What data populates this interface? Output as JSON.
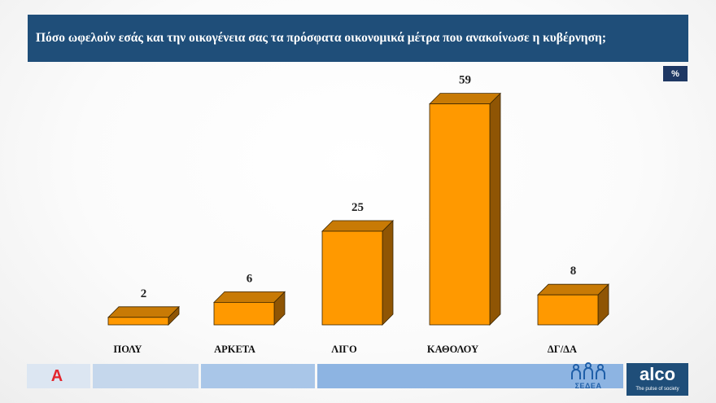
{
  "header": {
    "title": "Πόσο ωφελούν εσάς και την οικογένεια σας τα πρόσφατα οικονομικά μέτρα που ανακοίνωσε η κυβέρνηση;"
  },
  "unit": "%",
  "colors": {
    "header_bg": "#1f4e79",
    "bar_front": "#ff9900",
    "bar_top": "#c87a05",
    "bar_side": "#8f5504",
    "outline": "#3a2500"
  },
  "chart_data": {
    "type": "bar",
    "categories": [
      "ΠΟΛΥ",
      "ΑΡΚΕΤΑ",
      "ΛΙΓΟ",
      "ΚΑΘΟΛΟΥ",
      "ΔΓ/ΔΑ"
    ],
    "values": [
      2,
      6,
      25,
      59,
      8
    ],
    "title": "Πόσο ωφελούν εσάς και την οικογένεια σας τα πρόσφατα οικονομικά μέτρα που ανακοίνωσε η κυβέρνηση;",
    "unit": "%",
    "data_labels": true,
    "grid": false
  },
  "footer": {
    "logo_alpha": "Α",
    "logo_sedea": "ΣΕΔΕΑ",
    "logo_alco": {
      "name": "alco",
      "tagline": "The pulse of society"
    }
  }
}
